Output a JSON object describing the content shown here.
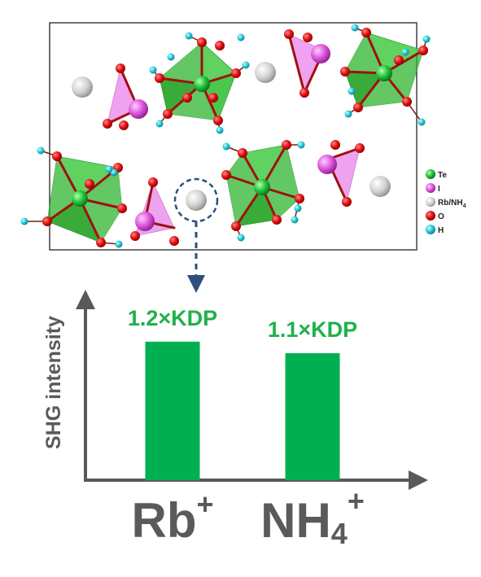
{
  "legend": {
    "items": [
      {
        "label": "Te",
        "color": "#1fc23a"
      },
      {
        "label": "I",
        "color": "#dd55dd"
      },
      {
        "label": "Rb/NH",
        "sub": "4",
        "color": "#c8c8c8"
      },
      {
        "label": "O",
        "color": "#dd1111"
      },
      {
        "label": "H",
        "color": "#22c7d8"
      }
    ]
  },
  "colors": {
    "te_octahedron": "#3fc63f",
    "iodate_triangle": "#ee99ee",
    "bar": "#00b050",
    "axis": "#595959",
    "arrow": "#2f4f7f"
  },
  "chart_data": {
    "type": "bar",
    "ylabel": "SHG intensity",
    "categories": [
      {
        "main": "Rb",
        "sub": "",
        "sup": "+"
      },
      {
        "main": "NH",
        "sub": "4",
        "sup": "+"
      }
    ],
    "values": [
      1.2,
      1.1
    ],
    "value_labels": [
      "1.2×KDP",
      "1.1×KDP"
    ],
    "ylim": [
      0,
      1.65
    ]
  }
}
